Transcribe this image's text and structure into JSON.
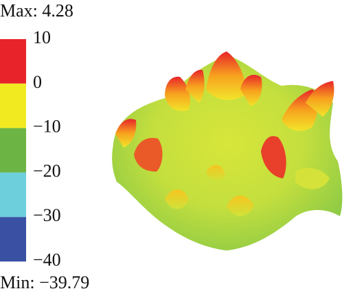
{
  "chart_data": {
    "type": "colorbar",
    "max_text": "Max: 4.28",
    "min_text": "Min: −39.79",
    "ylim": [
      -40,
      10
    ],
    "yticks": [
      10,
      0,
      {
        "value": -10,
        "label": "−10"
      },
      {
        "value": -20,
        "label": "−20"
      },
      {
        "value": -30,
        "label": "−30"
      },
      {
        "value": -40,
        "label": "−40"
      }
    ],
    "colors": [
      "#e8242a",
      "#f2ea21",
      "#6cb545",
      "#6dcfdc",
      "#3a51a3"
    ]
  }
}
